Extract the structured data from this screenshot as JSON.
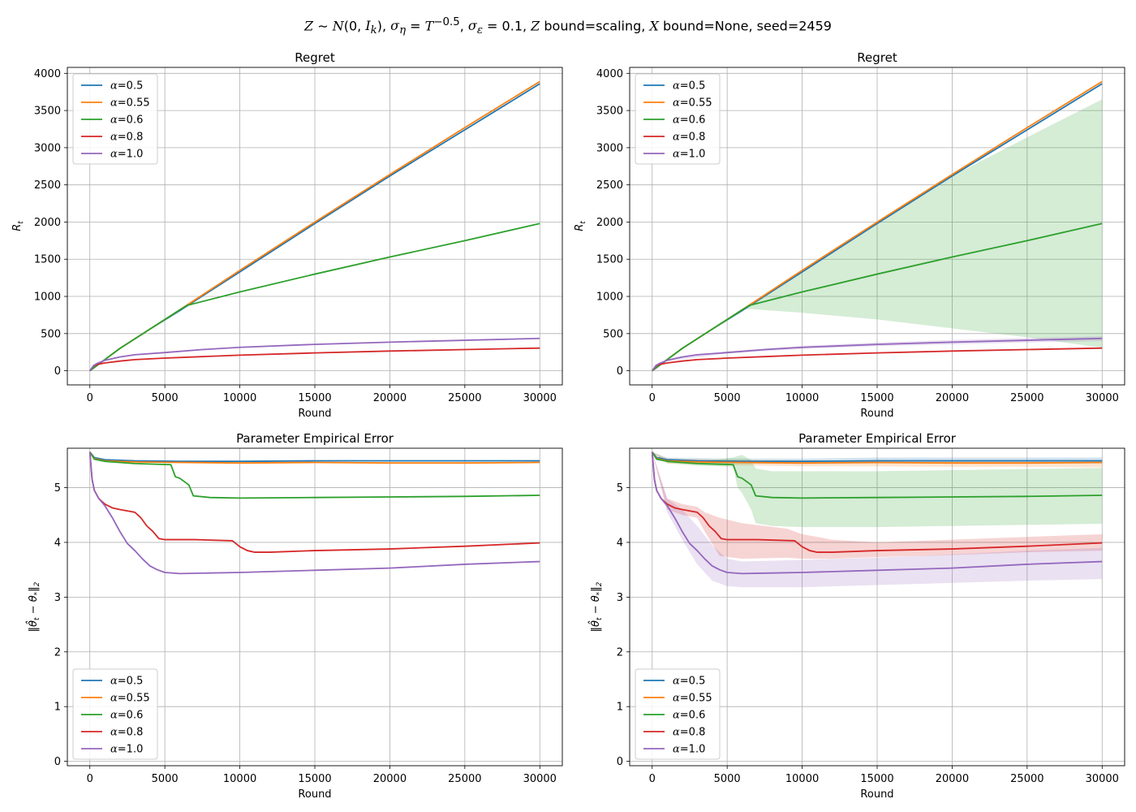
{
  "figure": {
    "suptitle_html": "<i>Z</i> ∼ <i>N</i>(0, <i>I<sub>k</sub></i>), <i>σ<sub>η</sub></i> = <i>T</i><sup>−0.5</sup>, <i>σ<sub>ε</sub></i> = 0.1, <i>Z</i> bound=scaling, <i>X</i> bound=None, seed=2459"
  },
  "colors": {
    "α=0.5": "#1f77b4",
    "α=0.55": "#ff7f0e",
    "α=0.6": "#2ca02c",
    "α=0.8": "#d62728",
    "α=1.0": "#9467bd"
  },
  "chart_data": [
    {
      "type": "line",
      "title": "Regret",
      "xlabel": "Round",
      "ylabel": "R_t",
      "xlim": [
        -1500,
        31500
      ],
      "ylim": [
        -190,
        4080
      ],
      "xticks": [
        0,
        5000,
        10000,
        15000,
        20000,
        25000,
        30000
      ],
      "yticks": [
        0,
        500,
        1000,
        1500,
        2000,
        2500,
        3000,
        3500,
        4000
      ],
      "grid": true,
      "legend": "upper-left",
      "series": [
        {
          "name": "α=0.5",
          "x": [
            0,
            2000,
            4000,
            6000,
            10000,
            15000,
            20000,
            25000,
            30000
          ],
          "y": [
            0,
            300,
            560,
            810,
            1330,
            1980,
            2620,
            3240,
            3860
          ]
        },
        {
          "name": "α=0.55",
          "x": [
            0,
            2000,
            4000,
            6000,
            10000,
            15000,
            20000,
            25000,
            30000
          ],
          "y": [
            0,
            300,
            560,
            820,
            1350,
            2000,
            2640,
            3270,
            3890
          ]
        },
        {
          "name": "α=0.6",
          "x": [
            0,
            2000,
            4000,
            6000,
            6500,
            10000,
            15000,
            20000,
            25000,
            30000
          ],
          "y": [
            0,
            300,
            560,
            820,
            880,
            1060,
            1300,
            1530,
            1750,
            1980
          ]
        },
        {
          "name": "α=0.8",
          "x": [
            0,
            250,
            500,
            1000,
            2000,
            3000,
            5000,
            7500,
            10000,
            15000,
            20000,
            25000,
            30000
          ],
          "y": [
            0,
            65,
            85,
            105,
            130,
            150,
            170,
            190,
            210,
            240,
            265,
            285,
            305
          ]
        },
        {
          "name": "α=1.0",
          "x": [
            0,
            250,
            500,
            1000,
            2000,
            3000,
            5000,
            7500,
            10000,
            15000,
            20000,
            25000,
            30000
          ],
          "y": [
            0,
            70,
            100,
            140,
            185,
            215,
            245,
            285,
            315,
            355,
            385,
            410,
            435
          ]
        }
      ]
    },
    {
      "type": "line",
      "title": "Regret",
      "xlabel": "Round",
      "ylabel": "R_t",
      "xlim": [
        -1500,
        31500
      ],
      "ylim": [
        -190,
        4080
      ],
      "xticks": [
        0,
        5000,
        10000,
        15000,
        20000,
        25000,
        30000
      ],
      "yticks": [
        0,
        500,
        1000,
        1500,
        2000,
        2500,
        3000,
        3500,
        4000
      ],
      "grid": true,
      "legend": "upper-left",
      "series": [
        {
          "name": "α=0.5",
          "x": [
            0,
            2000,
            4000,
            6000,
            10000,
            15000,
            20000,
            25000,
            30000
          ],
          "y": [
            0,
            300,
            560,
            810,
            1330,
            1980,
            2620,
            3240,
            3860
          ]
        },
        {
          "name": "α=0.55",
          "x": [
            0,
            2000,
            4000,
            6000,
            10000,
            15000,
            20000,
            25000,
            30000
          ],
          "y": [
            0,
            300,
            560,
            820,
            1350,
            2000,
            2640,
            3270,
            3890
          ]
        },
        {
          "name": "α=0.6",
          "x": [
            0,
            2000,
            4000,
            6000,
            6500,
            10000,
            15000,
            20000,
            25000,
            30000
          ],
          "y": [
            0,
            300,
            560,
            820,
            880,
            1060,
            1300,
            1530,
            1750,
            1980
          ],
          "band": {
            "x": [
              0,
              2000,
              4000,
              6000,
              6500,
              10000,
              15000,
              20000,
              25000,
              30000
            ],
            "lower": [
              0,
              300,
              560,
              820,
              830,
              780,
              690,
              570,
              450,
              310
            ],
            "upper": [
              0,
              300,
              560,
              820,
              880,
              1330,
              1980,
              2620,
              3140,
              3650
            ]
          }
        },
        {
          "name": "α=0.8",
          "x": [
            0,
            250,
            500,
            1000,
            2000,
            3000,
            5000,
            7500,
            10000,
            15000,
            20000,
            25000,
            30000
          ],
          "y": [
            0,
            65,
            85,
            105,
            130,
            150,
            170,
            190,
            210,
            240,
            265,
            285,
            305
          ]
        },
        {
          "name": "α=1.0",
          "x": [
            0,
            250,
            500,
            1000,
            2000,
            3000,
            5000,
            7500,
            10000,
            15000,
            20000,
            25000,
            30000
          ],
          "y": [
            0,
            70,
            100,
            140,
            185,
            215,
            245,
            285,
            315,
            355,
            385,
            410,
            435
          ],
          "band": {
            "x": [
              0,
              1000,
              5000,
              10000,
              15000,
              20000,
              25000,
              30000
            ],
            "lower": [
              0,
              130,
              230,
              295,
              330,
              355,
              380,
              400
            ],
            "upper": [
              0,
              150,
              260,
              335,
              380,
              415,
              440,
              465
            ]
          }
        }
      ]
    },
    {
      "type": "line",
      "title": "Parameter Empirical Error",
      "xlabel": "Round",
      "ylabel": "‖θ̂_t − θ_*‖_2",
      "xlim": [
        -1500,
        31500
      ],
      "ylim": [
        -0.08,
        5.72
      ],
      "xticks": [
        0,
        5000,
        10000,
        15000,
        20000,
        25000,
        30000
      ],
      "yticks": [
        0,
        1,
        2,
        3,
        4,
        5
      ],
      "grid": true,
      "legend": "lower-left",
      "series": [
        {
          "name": "α=0.5",
          "x": [
            0,
            300,
            1000,
            3000,
            6000,
            10000,
            15000,
            20000,
            25000,
            30000
          ],
          "y": [
            5.65,
            5.55,
            5.51,
            5.49,
            5.48,
            5.48,
            5.49,
            5.49,
            5.49,
            5.49
          ]
        },
        {
          "name": "α=0.55",
          "x": [
            0,
            300,
            1000,
            3000,
            6000,
            10000,
            15000,
            20000,
            25000,
            30000
          ],
          "y": [
            5.65,
            5.53,
            5.49,
            5.47,
            5.46,
            5.45,
            5.46,
            5.45,
            5.45,
            5.46
          ]
        },
        {
          "name": "α=0.6",
          "x": [
            0,
            300,
            1000,
            3000,
            5400,
            5700,
            6000,
            6600,
            6900,
            8000,
            10000,
            15000,
            20000,
            25000,
            30000
          ],
          "y": [
            5.65,
            5.52,
            5.48,
            5.44,
            5.42,
            5.2,
            5.17,
            5.05,
            4.85,
            4.82,
            4.81,
            4.82,
            4.83,
            4.84,
            4.86
          ]
        },
        {
          "name": "α=0.8",
          "x": [
            0,
            150,
            300,
            600,
            1000,
            1500,
            2000,
            3000,
            3400,
            3800,
            4200,
            4600,
            5000,
            7000,
            9500,
            10000,
            10500,
            11000,
            12000,
            15000,
            20000,
            25000,
            30000
          ],
          "y": [
            5.65,
            5.15,
            4.95,
            4.8,
            4.7,
            4.63,
            4.6,
            4.55,
            4.45,
            4.3,
            4.2,
            4.07,
            4.05,
            4.05,
            4.03,
            3.92,
            3.85,
            3.82,
            3.82,
            3.85,
            3.88,
            3.93,
            3.99
          ]
        },
        {
          "name": "α=1.0",
          "x": [
            0,
            150,
            300,
            600,
            1000,
            1500,
            2000,
            2500,
            3000,
            3500,
            4000,
            4500,
            5000,
            6000,
            8000,
            10000,
            15000,
            20000,
            25000,
            30000
          ],
          "y": [
            5.65,
            5.15,
            4.95,
            4.8,
            4.67,
            4.45,
            4.2,
            3.98,
            3.85,
            3.7,
            3.57,
            3.5,
            3.45,
            3.43,
            3.44,
            3.45,
            3.49,
            3.53,
            3.6,
            3.65
          ]
        }
      ]
    },
    {
      "type": "line",
      "title": "Parameter Empirical Error",
      "xlabel": "Round",
      "ylabel": "‖θ̂_t − θ_*‖_2",
      "xlim": [
        -1500,
        31500
      ],
      "ylim": [
        -0.08,
        5.72
      ],
      "xticks": [
        0,
        5000,
        10000,
        15000,
        20000,
        25000,
        30000
      ],
      "yticks": [
        0,
        1,
        2,
        3,
        4,
        5
      ],
      "grid": true,
      "legend": "lower-left",
      "series": [
        {
          "name": "α=0.5",
          "x": [
            0,
            300,
            1000,
            3000,
            6000,
            10000,
            15000,
            20000,
            25000,
            30000
          ],
          "y": [
            5.65,
            5.55,
            5.51,
            5.49,
            5.48,
            5.48,
            5.49,
            5.49,
            5.49,
            5.49
          ],
          "band": {
            "x": [
              0,
              1000,
              5000,
              10000,
              15000,
              20000,
              25000,
              30000
            ],
            "lower": [
              5.65,
              5.47,
              5.44,
              5.43,
              5.44,
              5.44,
              5.44,
              5.44
            ],
            "upper": [
              5.65,
              5.55,
              5.53,
              5.53,
              5.55,
              5.55,
              5.55,
              5.55
            ]
          }
        },
        {
          "name": "α=0.55",
          "x": [
            0,
            300,
            1000,
            3000,
            6000,
            10000,
            15000,
            20000,
            25000,
            30000
          ],
          "y": [
            5.65,
            5.53,
            5.49,
            5.47,
            5.46,
            5.45,
            5.46,
            5.45,
            5.45,
            5.46
          ],
          "band": {
            "x": [
              0,
              1000,
              5000,
              10000,
              15000,
              20000,
              25000,
              30000
            ],
            "lower": [
              5.65,
              5.44,
              5.41,
              5.39,
              5.39,
              5.38,
              5.38,
              5.37
            ],
            "upper": [
              5.65,
              5.53,
              5.51,
              5.5,
              5.5,
              5.5,
              5.5,
              5.5
            ]
          }
        },
        {
          "name": "α=0.6",
          "x": [
            0,
            300,
            1000,
            3000,
            5400,
            5700,
            6000,
            6600,
            6900,
            8000,
            10000,
            15000,
            20000,
            25000,
            30000
          ],
          "y": [
            5.65,
            5.52,
            5.48,
            5.44,
            5.42,
            5.2,
            5.17,
            5.05,
            4.85,
            4.82,
            4.81,
            4.82,
            4.83,
            4.84,
            4.86
          ],
          "band": {
            "x": [
              0,
              1000,
              3000,
              5400,
              5700,
              6000,
              6600,
              6900,
              8000,
              10000,
              15000,
              20000,
              25000,
              30000
            ],
            "lower": [
              5.65,
              5.45,
              5.4,
              5.38,
              5.0,
              4.9,
              4.6,
              4.35,
              4.3,
              4.28,
              4.28,
              4.3,
              4.32,
              4.34
            ],
            "upper": [
              5.65,
              5.5,
              5.47,
              5.55,
              5.58,
              5.6,
              5.5,
              5.35,
              5.3,
              5.3,
              5.3,
              5.32,
              5.34,
              5.36
            ]
          }
        },
        {
          "name": "α=0.8",
          "x": [
            0,
            150,
            300,
            600,
            1000,
            1500,
            2000,
            3000,
            3400,
            3800,
            4200,
            4600,
            5000,
            7000,
            9500,
            10000,
            10500,
            11000,
            12000,
            15000,
            20000,
            25000,
            30000
          ],
          "y": [
            5.65,
            5.15,
            4.95,
            4.8,
            4.7,
            4.63,
            4.6,
            4.55,
            4.45,
            4.3,
            4.2,
            4.07,
            4.05,
            4.05,
            4.03,
            3.92,
            3.85,
            3.82,
            3.82,
            3.85,
            3.88,
            3.93,
            3.99
          ],
          "band": {
            "x": [
              0,
              1000,
              2000,
              3000,
              3500,
              4500,
              6000,
              9000,
              10000,
              12000,
              15000,
              20000,
              25000,
              30000
            ],
            "lower": [
              5.65,
              4.6,
              4.5,
              4.45,
              4.2,
              3.75,
              3.7,
              3.72,
              3.7,
              3.7,
              3.73,
              3.77,
              3.82,
              3.85
            ],
            "upper": [
              5.65,
              4.8,
              4.7,
              4.65,
              4.55,
              4.45,
              4.35,
              4.25,
              4.15,
              4.05,
              4.0,
              4.05,
              4.1,
              4.15
            ]
          }
        },
        {
          "name": "α=1.0",
          "x": [
            0,
            150,
            300,
            600,
            1000,
            1500,
            2000,
            2500,
            3000,
            3500,
            4000,
            4500,
            5000,
            6000,
            8000,
            10000,
            15000,
            20000,
            25000,
            30000
          ],
          "y": [
            5.65,
            5.15,
            4.95,
            4.8,
            4.67,
            4.45,
            4.2,
            3.98,
            3.85,
            3.7,
            3.57,
            3.5,
            3.45,
            3.43,
            3.44,
            3.45,
            3.49,
            3.53,
            3.6,
            3.65
          ],
          "band": {
            "x": [
              0,
              1000,
              2000,
              3000,
              4000,
              5000,
              6000,
              10000,
              15000,
              20000,
              25000,
              30000
            ],
            "lower": [
              5.65,
              4.55,
              4.05,
              3.6,
              3.3,
              3.2,
              3.18,
              3.18,
              3.22,
              3.26,
              3.3,
              3.33
            ],
            "upper": [
              5.65,
              4.8,
              4.6,
              4.3,
              3.95,
              3.7,
              3.65,
              3.68,
              3.72,
              3.78,
              3.85,
              3.9
            ]
          }
        }
      ]
    }
  ]
}
